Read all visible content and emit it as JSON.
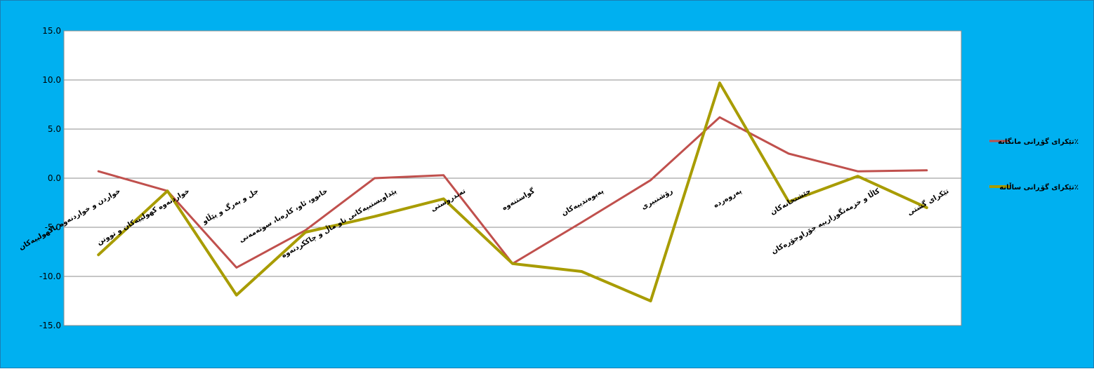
{
  "chart_data": {
    "type": "line",
    "categories": [
      "خواردن و خواردنەوە ناکهولییەکان",
      "خواردنەوە کهولییەکان و تووتن",
      "جل و بەرگ و پێڵاو",
      "خانوو، ئاو، کارەبا، سوتەمەنی",
      "پێداویستییەکانی ناو ماڵ و چاککردنەوە",
      "تەندروستی",
      "گواستنەوە",
      "پەیوەندییەکان",
      "رۆشنبیری",
      "پەروەردە",
      "چێشتخانەکان",
      "کاڵا و خزمەتگوزارییە جۆراوجۆرەکان",
      "تێکرای گشتی"
    ],
    "series": [
      {
        "name": "تێکرای گۆڕانی مانگانە٪",
        "color": "#c0504d",
        "values": [
          0.7,
          -1.3,
          -9.1,
          -5.3,
          0.0,
          0.3,
          -8.7,
          -4.5,
          -0.2,
          6.2,
          2.5,
          0.7,
          0.8
        ]
      },
      {
        "name": "تێکرای گۆڕانی ساڵانە٪",
        "color": "#a89c00",
        "values": [
          -7.8,
          -1.3,
          -11.9,
          -5.5,
          -3.9,
          -2.1,
          -8.7,
          -9.5,
          -12.5,
          9.7,
          -2.4,
          0.2,
          -3.0
        ]
      }
    ],
    "ylim": [
      -15,
      15
    ],
    "yticks": [
      "15.0",
      "10.0",
      "5.0",
      "0.0",
      "-5.0",
      "-10.0",
      "-15.0"
    ],
    "grid": true,
    "legend_position": "right"
  }
}
